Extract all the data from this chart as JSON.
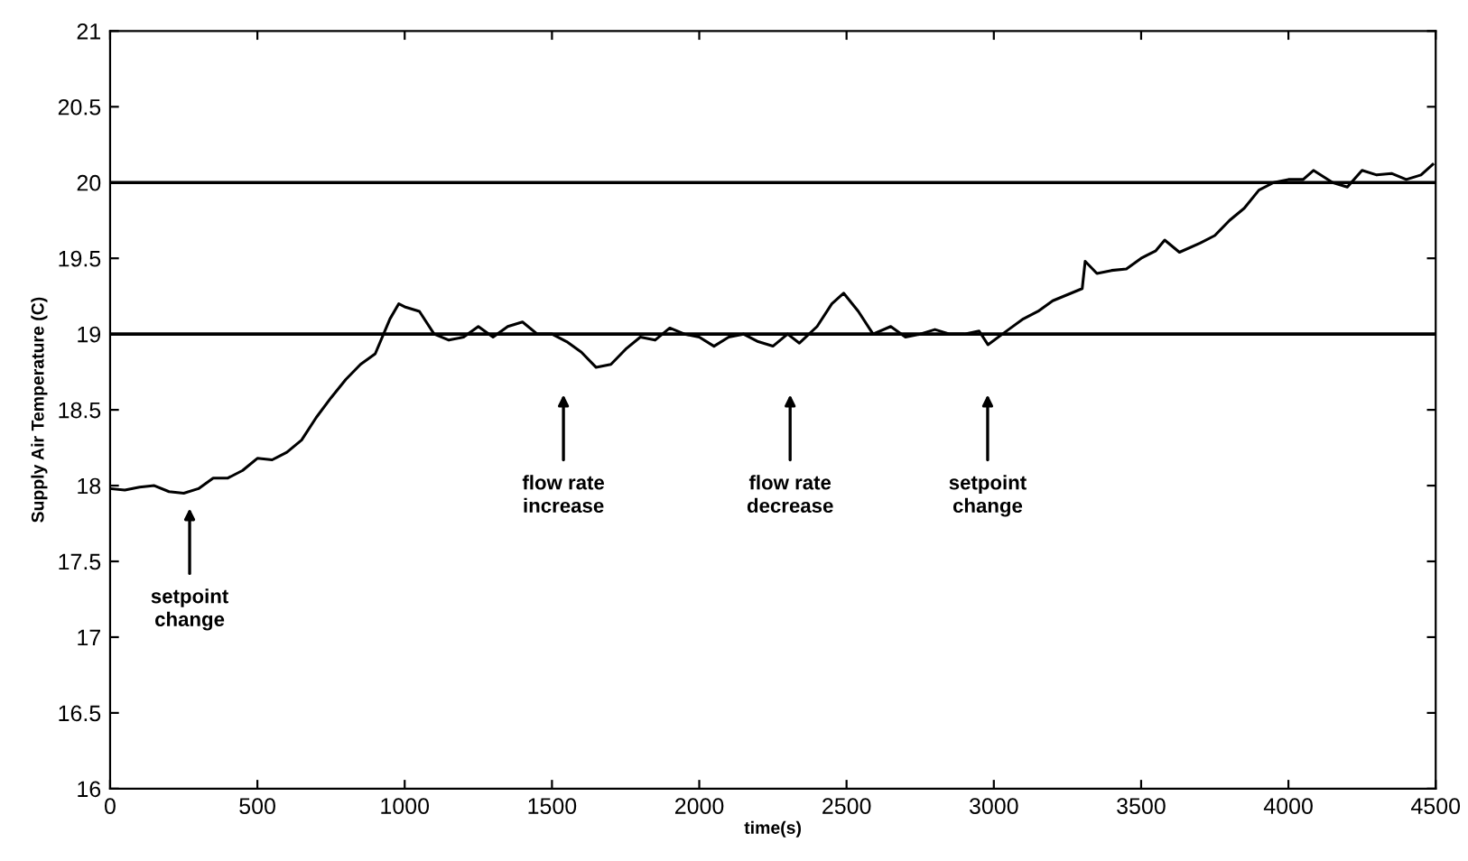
{
  "chart_data": {
    "type": "line",
    "xlabel": "time(s)",
    "ylabel": "Supply Air Temperature (C)",
    "x": [
      0,
      50,
      100,
      150,
      200,
      250,
      300,
      350,
      400,
      450,
      500,
      550,
      600,
      650,
      700,
      750,
      800,
      850,
      900,
      950,
      980,
      1000,
      1050,
      1100,
      1150,
      1200,
      1250,
      1300,
      1350,
      1400,
      1450,
      1500,
      1550,
      1600,
      1650,
      1700,
      1750,
      1800,
      1850,
      1900,
      1950,
      2000,
      2050,
      2100,
      2150,
      2200,
      2250,
      2300,
      2340,
      2400,
      2450,
      2490,
      2540,
      2590,
      2650,
      2700,
      2750,
      2800,
      2850,
      2900,
      2950,
      2980,
      3050,
      3100,
      3150,
      3200,
      3250,
      3300,
      3310,
      3350,
      3400,
      3450,
      3500,
      3550,
      3580,
      3630,
      3700,
      3750,
      3800,
      3850,
      3900,
      3950,
      4000,
      4050,
      4085,
      4150,
      4200,
      4250,
      4300,
      4350,
      4400,
      4450,
      4490
    ],
    "series": [
      {
        "color": "#000000",
        "values": [
          17.98,
          17.97,
          17.99,
          18.0,
          17.96,
          17.95,
          17.98,
          18.05,
          18.05,
          18.1,
          18.18,
          18.17,
          18.22,
          18.3,
          18.45,
          18.58,
          18.7,
          18.8,
          18.87,
          19.1,
          19.2,
          19.18,
          19.15,
          19.0,
          18.96,
          18.98,
          19.05,
          18.98,
          19.05,
          19.08,
          19.0,
          19.0,
          18.95,
          18.88,
          18.78,
          18.8,
          18.9,
          18.98,
          18.96,
          19.04,
          19.0,
          18.98,
          18.92,
          18.98,
          19.0,
          18.95,
          18.92,
          19.0,
          18.94,
          19.05,
          19.2,
          19.27,
          19.15,
          19.0,
          19.05,
          18.98,
          19.0,
          19.03,
          19.0,
          19.0,
          19.02,
          18.93,
          19.03,
          19.1,
          19.15,
          19.22,
          19.26,
          19.3,
          19.48,
          19.4,
          19.42,
          19.43,
          19.5,
          19.55,
          19.62,
          19.54,
          19.6,
          19.65,
          19.75,
          19.83,
          19.95,
          20.0,
          20.02,
          20.02,
          20.08,
          20.0,
          19.97,
          20.08,
          20.05,
          20.06,
          20.02,
          20.05,
          20.12
        ]
      }
    ],
    "xlim": [
      0,
      4500
    ],
    "ylim": [
      16,
      21
    ],
    "xticks": [
      0,
      500,
      1000,
      1500,
      2000,
      2500,
      3000,
      3500,
      4000,
      4500
    ],
    "yticks": [
      16,
      16.5,
      17,
      17.5,
      18,
      18.5,
      19,
      19.5,
      20,
      20.5,
      21
    ],
    "ref_lines": [
      {
        "axis": "y",
        "value": 19,
        "color": "#000000"
      },
      {
        "axis": "y",
        "value": 20,
        "color": "#000000"
      }
    ],
    "annotations": [
      "setpoint\nchange",
      "flow rate\nincrease",
      "flow rate\ndecrease",
      "setpoint\nchange"
    ],
    "grid": false,
    "marker": "none",
    "line_style": "solid"
  }
}
